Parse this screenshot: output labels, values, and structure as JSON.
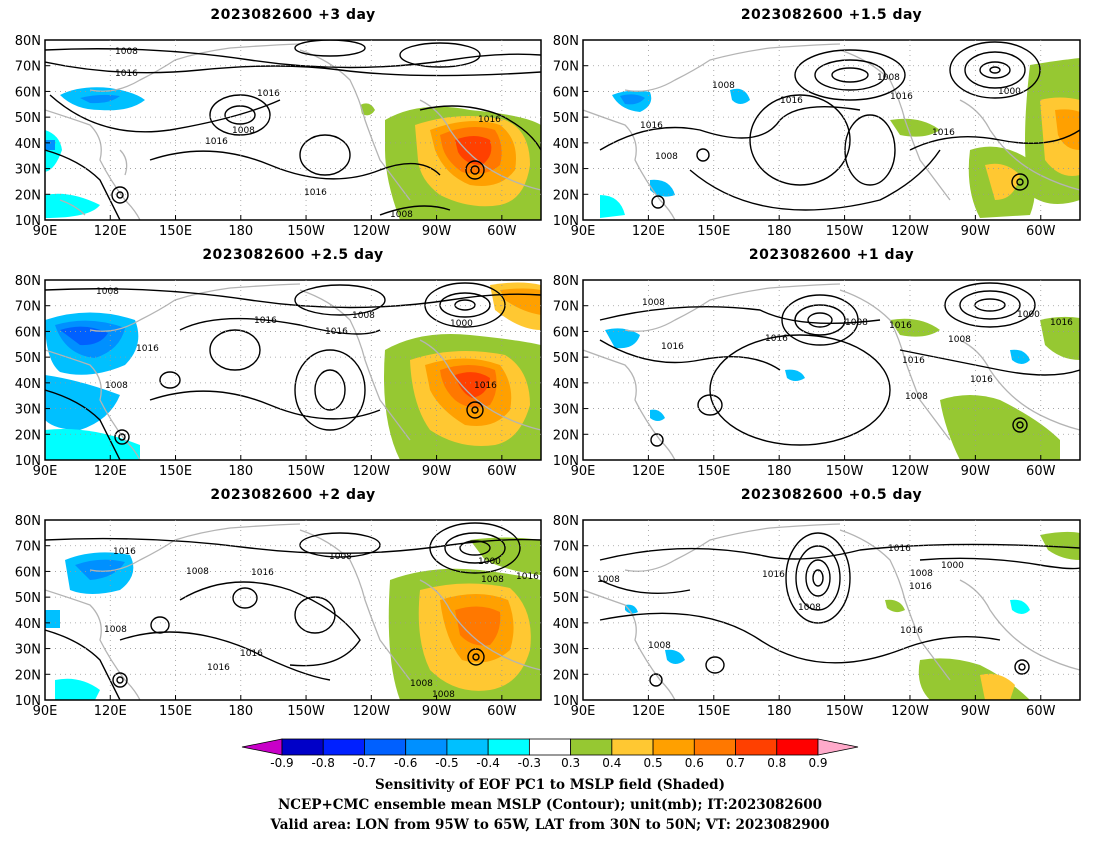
{
  "panels": [
    {
      "title": "2023082600  +3 day",
      "contour_labels": [
        "1008",
        "1016",
        "1016",
        "1008",
        "1016",
        "1016",
        "1016",
        "1008"
      ]
    },
    {
      "title": "2023082600  +1.5 day",
      "contour_labels": [
        "1008",
        "1016",
        "1008",
        "1016",
        "1000",
        "1016",
        "1016",
        "1008"
      ]
    },
    {
      "title": "2023082600  +2.5 day",
      "contour_labels": [
        "1008",
        "1016",
        "1008",
        "1016",
        "1016",
        "1008",
        "1000",
        "1016"
      ]
    },
    {
      "title": "2023082600  +1 day",
      "contour_labels": [
        "1008",
        "1016",
        "1016",
        "1008",
        "1016",
        "1000",
        "1008",
        "1016",
        "1016",
        "1016",
        "1008"
      ]
    },
    {
      "title": "2023082600  +2 day",
      "contour_labels": [
        "1016",
        "1008",
        "1016",
        "1008",
        "1016",
        "1016",
        "1008",
        "1000",
        "1008",
        "1016",
        "1008",
        "1008"
      ]
    },
    {
      "title": "2023082600  +0.5 day",
      "contour_labels": [
        "1008",
        "1016",
        "1008",
        "1016",
        "1000",
        "1008",
        "1016",
        "1016",
        "1008"
      ]
    }
  ],
  "axes": {
    "lat_labels": [
      "80N",
      "70N",
      "60N",
      "50N",
      "40N",
      "30N",
      "20N",
      "10N"
    ],
    "lon_labels": [
      "90E",
      "120E",
      "150E",
      "180",
      "150W",
      "120W",
      "90W",
      "60W"
    ],
    "lon_values": [
      90,
      120,
      150,
      180,
      210,
      240,
      270,
      300
    ],
    "lat_values": [
      80,
      70,
      60,
      50,
      40,
      30,
      20,
      10
    ],
    "lon_range": [
      90,
      318
    ],
    "lat_range": [
      10,
      80
    ]
  },
  "colorbar": {
    "tick_labels": [
      "-0.9",
      "-0.8",
      "-0.7",
      "-0.6",
      "-0.5",
      "-0.4",
      "-0.3",
      "0.3",
      "0.4",
      "0.5",
      "0.6",
      "0.7",
      "0.8",
      "0.9"
    ],
    "colors": [
      "#c800c8",
      "#0000c8",
      "#0020ff",
      "#0060ff",
      "#0090ff",
      "#00c0ff",
      "#00ffff",
      "#ffffff",
      "#96c832",
      "#ffc832",
      "#ffa000",
      "#ff7800",
      "#ff4000",
      "#ff0000",
      "#ffaaca"
    ]
  },
  "caption": {
    "line1": "Sensitivity of EOF PC1 to MSLP field (Shaded)",
    "line2": "NCEP+CMC ensemble mean MSLP (Contour); unit(mb); IT:2023082600",
    "line3": "Valid area: LON from 95W to 65W, LAT from 30N to 50N; VT: 2023082900"
  }
}
